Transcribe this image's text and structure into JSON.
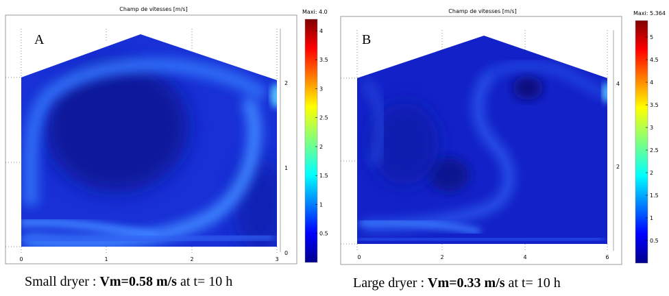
{
  "panels": [
    {
      "id": "A",
      "letter": "A",
      "title": "Champ de vitesses [m/s]",
      "max_label": "Maxi: 4.0",
      "x_ticks": [
        "0",
        "1",
        "2",
        "3"
      ],
      "y_ticks": [
        "0",
        "1",
        "2"
      ],
      "colorbar_ticks": [
        "0.5",
        "1",
        "1.5",
        "2",
        "2.5",
        "3",
        "3.5",
        "4"
      ],
      "caption": {
        "prefix": "Small dryer : ",
        "bold": "Vm=0.58 m/s",
        "suffix": " at t= 10 h"
      }
    },
    {
      "id": "B",
      "letter": "B",
      "title": "Champ de vitesses [m/s]",
      "max_label": "Maxi: 5.364",
      "x_ticks": [
        "0",
        "2",
        "4",
        "6"
      ],
      "y_ticks": [
        "2",
        "4"
      ],
      "colorbar_ticks": [
        "0.5",
        "1",
        "1.5",
        "2",
        "2.5",
        "3",
        "3.5",
        "4",
        "4.5",
        "5"
      ],
      "caption": {
        "prefix": "Large dryer : ",
        "bold": "Vm=0.33 m/s",
        "suffix": " at t= 10 h"
      }
    }
  ],
  "colors": {
    "field_base": "#1a30d8",
    "field_light": "#3c86ff",
    "field_dark": "#0a1690",
    "colorbar_top": "#800000",
    "colorbar_bottom": "#00008c"
  }
}
